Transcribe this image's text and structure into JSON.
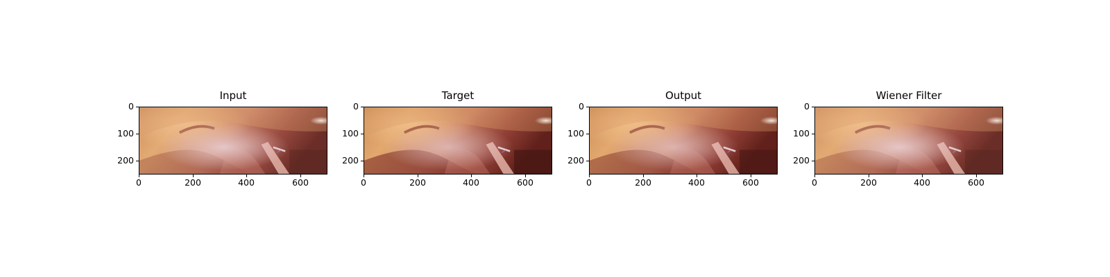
{
  "figure": {
    "panels": [
      {
        "title": "Input",
        "variant": "input"
      },
      {
        "title": "Target",
        "variant": "target"
      },
      {
        "title": "Output",
        "variant": "output"
      },
      {
        "title": "Wiener Filter",
        "variant": "wiener"
      }
    ],
    "x_ticks": [
      "0",
      "200",
      "400",
      "600"
    ],
    "y_ticks": [
      "0",
      "100",
      "200"
    ],
    "x_range": [
      0,
      700
    ],
    "y_range": [
      0,
      250
    ],
    "image_description_colors": {
      "flesh_light": "#e8b072",
      "flesh_mid": "#c77a52",
      "tissue_pink": "#d9a3a0",
      "dark_red": "#5a1410",
      "highlight": "#f3e6e4"
    }
  }
}
